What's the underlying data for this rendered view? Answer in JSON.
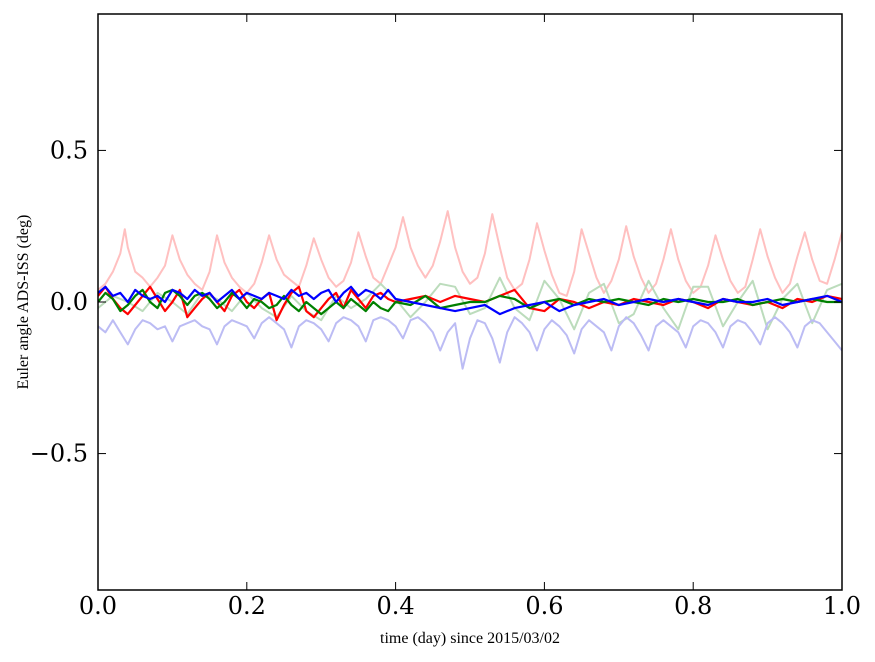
{
  "chart_data": {
    "type": "line",
    "title": "",
    "xlabel": "time (day) since 2015/03/02",
    "ylabel": "Euler angle ADS-ISS (deg)",
    "xlim": [
      0.0,
      1.0
    ],
    "ylim": [
      -0.95,
      0.95
    ],
    "grid": false,
    "legend": "none",
    "x_ticks": [
      0.0,
      0.2,
      0.4,
      0.6,
      0.8,
      1.0
    ],
    "x_tick_labels": [
      "0.0",
      "0.2",
      "0.4",
      "0.6",
      "0.8",
      "1.0"
    ],
    "y_ticks": [
      0.5,
      0.0,
      -0.5
    ],
    "y_tick_labels": [
      "0.5",
      "0.0",
      "−0.5"
    ],
    "series": [
      {
        "style": "faint",
        "color": "#ffc0c0",
        "x": [
          0,
          0.01,
          0.02,
          0.03,
          0.036,
          0.04,
          0.05,
          0.06,
          0.07,
          0.08,
          0.09,
          0.1,
          0.11,
          0.12,
          0.13,
          0.14,
          0.15,
          0.16,
          0.17,
          0.18,
          0.19,
          0.2,
          0.21,
          0.22,
          0.23,
          0.24,
          0.25,
          0.26,
          0.27,
          0.28,
          0.29,
          0.3,
          0.31,
          0.32,
          0.33,
          0.34,
          0.35,
          0.36,
          0.37,
          0.38,
          0.39,
          0.4,
          0.41,
          0.42,
          0.43,
          0.44,
          0.45,
          0.46,
          0.47,
          0.48,
          0.49,
          0.5,
          0.51,
          0.52,
          0.53,
          0.54,
          0.55,
          0.56,
          0.57,
          0.58,
          0.59,
          0.6,
          0.61,
          0.62,
          0.63,
          0.64,
          0.65,
          0.66,
          0.67,
          0.68,
          0.69,
          0.7,
          0.71,
          0.72,
          0.73,
          0.74,
          0.75,
          0.76,
          0.77,
          0.78,
          0.79,
          0.8,
          0.81,
          0.82,
          0.83,
          0.84,
          0.85,
          0.86,
          0.87,
          0.88,
          0.89,
          0.9,
          0.91,
          0.92,
          0.93,
          0.94,
          0.95,
          0.96,
          0.97,
          0.98,
          0.99,
          1.0
        ],
        "y": [
          0.04,
          0.06,
          0.1,
          0.16,
          0.24,
          0.18,
          0.1,
          0.08,
          0.05,
          0.08,
          0.12,
          0.22,
          0.14,
          0.09,
          0.06,
          0.04,
          0.1,
          0.22,
          0.13,
          0.08,
          0.05,
          0.03,
          0.06,
          0.13,
          0.22,
          0.14,
          0.09,
          0.07,
          0.05,
          0.12,
          0.21,
          0.14,
          0.08,
          0.05,
          0.07,
          0.13,
          0.23,
          0.15,
          0.08,
          0.06,
          0.12,
          0.18,
          0.28,
          0.18,
          0.12,
          0.08,
          0.12,
          0.2,
          0.3,
          0.18,
          0.1,
          0.06,
          0.08,
          0.16,
          0.29,
          0.18,
          0.08,
          0.04,
          0.06,
          0.14,
          0.26,
          0.17,
          0.09,
          0.03,
          0.02,
          0.1,
          0.24,
          0.16,
          0.08,
          0.03,
          0.07,
          0.14,
          0.25,
          0.15,
          0.08,
          0.03,
          0.06,
          0.14,
          0.24,
          0.14,
          0.07,
          0.03,
          0.05,
          0.12,
          0.22,
          0.14,
          0.07,
          0.03,
          0.05,
          0.14,
          0.24,
          0.15,
          0.08,
          0.03,
          0.06,
          0.15,
          0.23,
          0.14,
          0.07,
          0.06,
          0.14,
          0.23
        ]
      },
      {
        "style": "faint",
        "color": "#bcdcbc",
        "x": [
          0,
          0.02,
          0.04,
          0.06,
          0.08,
          0.1,
          0.12,
          0.14,
          0.16,
          0.18,
          0.2,
          0.22,
          0.24,
          0.26,
          0.28,
          0.3,
          0.32,
          0.34,
          0.36,
          0.38,
          0.4,
          0.42,
          0.44,
          0.46,
          0.48,
          0.5,
          0.52,
          0.54,
          0.56,
          0.58,
          0.6,
          0.62,
          0.64,
          0.66,
          0.68,
          0.7,
          0.72,
          0.74,
          0.76,
          0.78,
          0.8,
          0.82,
          0.84,
          0.86,
          0.88,
          0.9,
          0.92,
          0.94,
          0.96,
          0.98,
          1.0
        ],
        "y": [
          -0.02,
          0.02,
          0.0,
          -0.03,
          0.03,
          0.0,
          -0.04,
          0.03,
          0.01,
          -0.03,
          0.03,
          -0.02,
          -0.05,
          0.02,
          -0.03,
          -0.06,
          0.02,
          -0.02,
          0.01,
          0.06,
          0.01,
          -0.05,
          0.0,
          0.06,
          0.05,
          -0.04,
          -0.02,
          0.08,
          -0.02,
          -0.06,
          0.07,
          0.01,
          -0.09,
          0.03,
          0.06,
          -0.07,
          -0.04,
          0.07,
          -0.02,
          -0.09,
          0.05,
          0.05,
          -0.08,
          0.0,
          0.07,
          -0.09,
          0.01,
          0.06,
          -0.07,
          0.04,
          0.06
        ]
      },
      {
        "style": "faint",
        "color": "#bcbcf4",
        "x": [
          0,
          0.01,
          0.02,
          0.03,
          0.04,
          0.05,
          0.06,
          0.07,
          0.08,
          0.09,
          0.1,
          0.11,
          0.12,
          0.13,
          0.14,
          0.15,
          0.16,
          0.17,
          0.18,
          0.19,
          0.2,
          0.21,
          0.22,
          0.23,
          0.24,
          0.25,
          0.26,
          0.27,
          0.28,
          0.29,
          0.3,
          0.31,
          0.32,
          0.33,
          0.34,
          0.35,
          0.36,
          0.37,
          0.38,
          0.39,
          0.4,
          0.41,
          0.42,
          0.43,
          0.44,
          0.45,
          0.46,
          0.47,
          0.48,
          0.49,
          0.5,
          0.51,
          0.52,
          0.53,
          0.54,
          0.55,
          0.56,
          0.57,
          0.58,
          0.59,
          0.6,
          0.61,
          0.62,
          0.63,
          0.64,
          0.65,
          0.66,
          0.67,
          0.68,
          0.69,
          0.7,
          0.71,
          0.72,
          0.73,
          0.74,
          0.75,
          0.76,
          0.77,
          0.78,
          0.79,
          0.8,
          0.81,
          0.82,
          0.83,
          0.84,
          0.85,
          0.86,
          0.87,
          0.88,
          0.89,
          0.9,
          0.91,
          0.92,
          0.93,
          0.94,
          0.95,
          0.96,
          0.97,
          0.98,
          0.99,
          1.0
        ],
        "y": [
          -0.08,
          -0.1,
          -0.06,
          -0.1,
          -0.14,
          -0.09,
          -0.06,
          -0.07,
          -0.09,
          -0.08,
          -0.13,
          -0.08,
          -0.07,
          -0.06,
          -0.08,
          -0.09,
          -0.14,
          -0.08,
          -0.06,
          -0.07,
          -0.08,
          -0.12,
          -0.07,
          -0.05,
          -0.07,
          -0.09,
          -0.15,
          -0.08,
          -0.06,
          -0.07,
          -0.09,
          -0.13,
          -0.07,
          -0.05,
          -0.06,
          -0.08,
          -0.13,
          -0.06,
          -0.05,
          -0.06,
          -0.08,
          -0.12,
          -0.06,
          -0.05,
          -0.07,
          -0.1,
          -0.16,
          -0.1,
          -0.07,
          -0.22,
          -0.12,
          -0.06,
          -0.07,
          -0.12,
          -0.2,
          -0.1,
          -0.05,
          -0.07,
          -0.1,
          -0.16,
          -0.09,
          -0.06,
          -0.08,
          -0.11,
          -0.17,
          -0.09,
          -0.06,
          -0.08,
          -0.1,
          -0.16,
          -0.08,
          -0.05,
          -0.07,
          -0.11,
          -0.16,
          -0.08,
          -0.06,
          -0.08,
          -0.1,
          -0.15,
          -0.08,
          -0.06,
          -0.07,
          -0.1,
          -0.15,
          -0.08,
          -0.06,
          -0.07,
          -0.1,
          -0.14,
          -0.07,
          -0.05,
          -0.07,
          -0.1,
          -0.15,
          -0.08,
          -0.06,
          -0.07,
          -0.1,
          -0.13,
          -0.16
        ]
      },
      {
        "style": "bold",
        "color": "#ff0000",
        "x": [
          0,
          0.01,
          0.02,
          0.03,
          0.04,
          0.05,
          0.06,
          0.07,
          0.08,
          0.09,
          0.1,
          0.11,
          0.12,
          0.13,
          0.14,
          0.15,
          0.16,
          0.17,
          0.18,
          0.19,
          0.2,
          0.21,
          0.22,
          0.23,
          0.24,
          0.25,
          0.26,
          0.27,
          0.28,
          0.29,
          0.3,
          0.31,
          0.32,
          0.33,
          0.34,
          0.35,
          0.36,
          0.37,
          0.38,
          0.39,
          0.4,
          0.42,
          0.44,
          0.46,
          0.48,
          0.5,
          0.52,
          0.54,
          0.56,
          0.58,
          0.6,
          0.62,
          0.64,
          0.66,
          0.68,
          0.7,
          0.72,
          0.74,
          0.76,
          0.78,
          0.8,
          0.82,
          0.84,
          0.86,
          0.88,
          0.9,
          0.92,
          0.94,
          0.96,
          0.98,
          1.0
        ],
        "y": [
          0.02,
          0.05,
          0.01,
          -0.02,
          -0.04,
          -0.01,
          0.02,
          0.05,
          0.01,
          -0.03,
          0.0,
          0.04,
          -0.05,
          -0.02,
          0.01,
          0.03,
          0.0,
          -0.03,
          0.02,
          0.04,
          0.0,
          -0.02,
          0.01,
          0.03,
          -0.06,
          -0.01,
          0.03,
          0.05,
          -0.03,
          -0.05,
          -0.02,
          0.01,
          0.03,
          -0.02,
          0.04,
          0.01,
          -0.02,
          0.02,
          0.03,
          0.01,
          0.0,
          0.01,
          0.02,
          0.0,
          0.02,
          0.01,
          0.0,
          0.02,
          0.04,
          -0.02,
          -0.03,
          0.01,
          0.0,
          -0.02,
          0.0,
          -0.01,
          0.01,
          0.0,
          -0.01,
          0.01,
          0.0,
          -0.02,
          0.01,
          0.0,
          -0.01,
          0.0,
          -0.02,
          0.01,
          0.0,
          0.02,
          0.01
        ]
      },
      {
        "style": "bold",
        "color": "#008000",
        "x": [
          0,
          0.01,
          0.02,
          0.03,
          0.04,
          0.05,
          0.06,
          0.07,
          0.08,
          0.09,
          0.1,
          0.11,
          0.12,
          0.13,
          0.14,
          0.15,
          0.16,
          0.17,
          0.18,
          0.19,
          0.2,
          0.21,
          0.22,
          0.23,
          0.24,
          0.25,
          0.26,
          0.27,
          0.28,
          0.29,
          0.3,
          0.31,
          0.32,
          0.33,
          0.34,
          0.35,
          0.36,
          0.37,
          0.38,
          0.39,
          0.4,
          0.42,
          0.44,
          0.46,
          0.48,
          0.5,
          0.52,
          0.54,
          0.56,
          0.58,
          0.6,
          0.62,
          0.64,
          0.66,
          0.68,
          0.7,
          0.72,
          0.74,
          0.76,
          0.78,
          0.8,
          0.82,
          0.84,
          0.86,
          0.88,
          0.9,
          0.92,
          0.94,
          0.96,
          0.98,
          1.0
        ],
        "y": [
          0.0,
          0.03,
          0.01,
          -0.03,
          -0.01,
          0.02,
          0.04,
          0.0,
          -0.02,
          0.03,
          0.04,
          0.02,
          -0.01,
          0.02,
          0.03,
          0.01,
          -0.02,
          0.0,
          0.03,
          0.01,
          -0.02,
          0.01,
          0.0,
          -0.02,
          -0.01,
          0.02,
          -0.01,
          -0.03,
          0.0,
          -0.02,
          -0.04,
          -0.02,
          0.0,
          -0.02,
          0.01,
          -0.01,
          -0.03,
          0.0,
          -0.02,
          -0.03,
          0.0,
          -0.01,
          0.02,
          -0.02,
          -0.01,
          0.0,
          0.0,
          0.02,
          0.01,
          -0.02,
          0.0,
          0.01,
          -0.01,
          0.01,
          0.0,
          0.01,
          0.0,
          -0.01,
          0.01,
          0.0,
          0.01,
          0.0,
          0.0,
          0.01,
          -0.01,
          0.0,
          0.01,
          0.0,
          0.01,
          0.0,
          0.0
        ]
      },
      {
        "style": "bold",
        "color": "#0000ff",
        "x": [
          0,
          0.01,
          0.02,
          0.03,
          0.04,
          0.05,
          0.06,
          0.07,
          0.08,
          0.09,
          0.1,
          0.11,
          0.12,
          0.13,
          0.14,
          0.15,
          0.16,
          0.17,
          0.18,
          0.19,
          0.2,
          0.21,
          0.22,
          0.23,
          0.24,
          0.25,
          0.26,
          0.27,
          0.28,
          0.29,
          0.3,
          0.31,
          0.32,
          0.33,
          0.34,
          0.35,
          0.36,
          0.37,
          0.38,
          0.39,
          0.4,
          0.42,
          0.44,
          0.46,
          0.48,
          0.5,
          0.52,
          0.54,
          0.56,
          0.58,
          0.6,
          0.62,
          0.64,
          0.66,
          0.68,
          0.7,
          0.72,
          0.74,
          0.76,
          0.78,
          0.8,
          0.82,
          0.84,
          0.86,
          0.88,
          0.9,
          0.92,
          0.94,
          0.96,
          0.98,
          1.0
        ],
        "y": [
          0.03,
          0.05,
          0.02,
          0.03,
          0.0,
          0.04,
          0.02,
          0.01,
          0.02,
          0.0,
          0.04,
          0.03,
          0.01,
          0.04,
          0.02,
          0.03,
          0.0,
          0.02,
          0.04,
          0.01,
          0.03,
          0.02,
          0.01,
          0.03,
          0.02,
          0.01,
          0.04,
          0.02,
          0.03,
          0.01,
          0.03,
          0.04,
          0.0,
          0.03,
          0.05,
          0.02,
          0.04,
          0.03,
          0.01,
          0.04,
          0.01,
          0.0,
          -0.01,
          -0.02,
          -0.03,
          -0.02,
          -0.01,
          -0.04,
          -0.02,
          -0.01,
          0.0,
          -0.03,
          -0.01,
          0.0,
          0.01,
          -0.01,
          0.0,
          0.01,
          0.0,
          0.01,
          0.0,
          -0.01,
          0.01,
          0.0,
          0.0,
          0.01,
          -0.01,
          0.0,
          0.01,
          0.02,
          0.0
        ]
      }
    ]
  }
}
